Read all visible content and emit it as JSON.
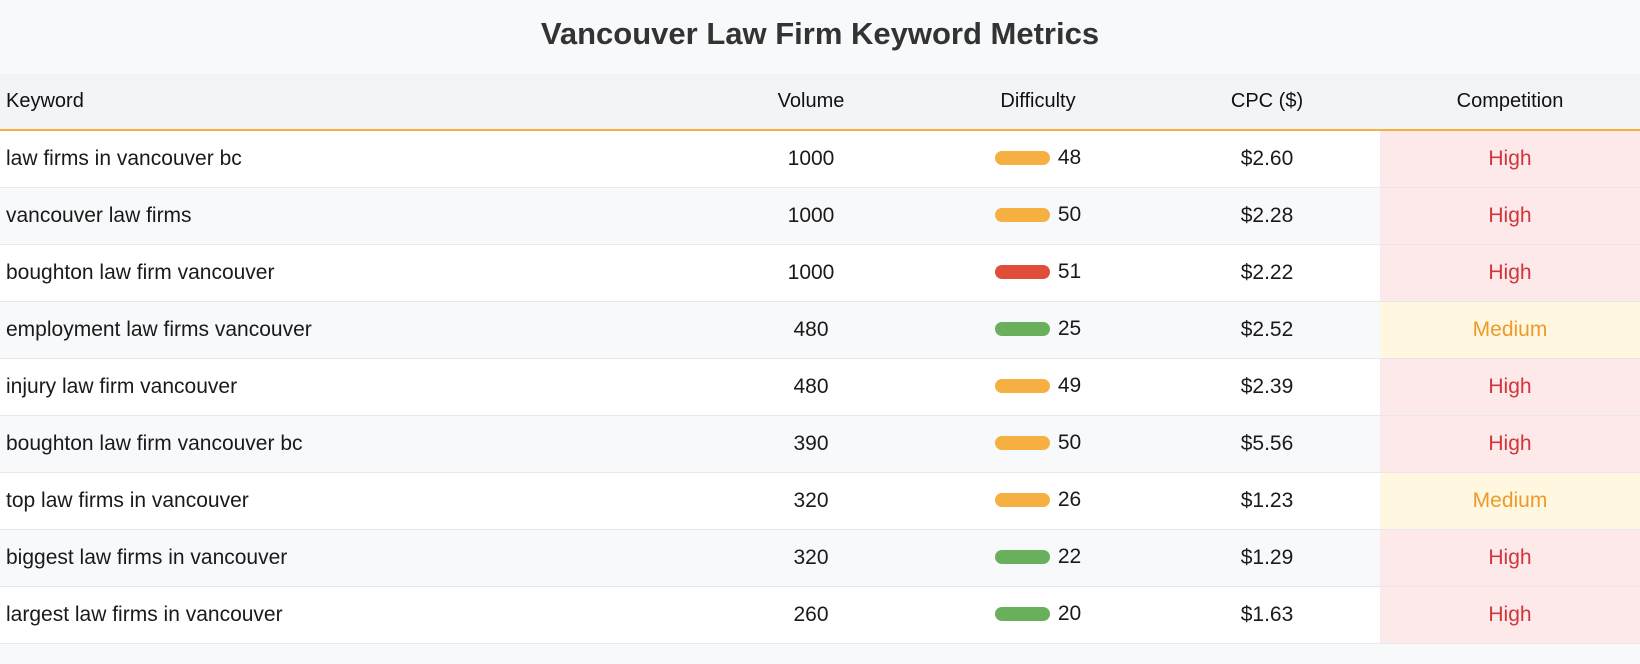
{
  "page": {
    "title": "Vancouver Law Firm Keyword Metrics"
  },
  "table": {
    "headers": {
      "keyword": "Keyword",
      "volume": "Volume",
      "difficulty": "Difficulty",
      "cpc": "CPC ($)",
      "competition": "Competition"
    },
    "rows": [
      {
        "keyword": "law firms in vancouver bc",
        "volume": "1000",
        "difficulty": "48",
        "difficulty_color": "#f5b041",
        "cpc": "$2.60",
        "competition": "High"
      },
      {
        "keyword": "vancouver law firms",
        "volume": "1000",
        "difficulty": "50",
        "difficulty_color": "#f5b041",
        "cpc": "$2.28",
        "competition": "High"
      },
      {
        "keyword": "boughton law firm vancouver",
        "volume": "1000",
        "difficulty": "51",
        "difficulty_color": "#e04e39",
        "cpc": "$2.22",
        "competition": "High"
      },
      {
        "keyword": "employment law firms vancouver",
        "volume": "480",
        "difficulty": "25",
        "difficulty_color": "#6aaf5c",
        "cpc": "$2.52",
        "competition": "Medium"
      },
      {
        "keyword": "injury law firm vancouver",
        "volume": "480",
        "difficulty": "49",
        "difficulty_color": "#f5b041",
        "cpc": "$2.39",
        "competition": "High"
      },
      {
        "keyword": "boughton law firm vancouver bc",
        "volume": "390",
        "difficulty": "50",
        "difficulty_color": "#f5b041",
        "cpc": "$5.56",
        "competition": "High"
      },
      {
        "keyword": "top law firms in vancouver",
        "volume": "320",
        "difficulty": "26",
        "difficulty_color": "#f5b041",
        "cpc": "$1.23",
        "competition": "Medium"
      },
      {
        "keyword": "biggest law firms in vancouver",
        "volume": "320",
        "difficulty": "22",
        "difficulty_color": "#6aaf5c",
        "cpc": "$1.29",
        "competition": "High"
      },
      {
        "keyword": "largest law firms in vancouver",
        "volume": "260",
        "difficulty": "20",
        "difficulty_color": "#6aaf5c",
        "cpc": "$1.63",
        "competition": "High"
      }
    ]
  },
  "colors": {
    "header_accent": "#f5b041",
    "competition_high_text": "#d0363a",
    "competition_high_bg": "#fde8ea",
    "competition_medium_text": "#ec9a2c",
    "competition_medium_bg": "#fff7e0"
  }
}
